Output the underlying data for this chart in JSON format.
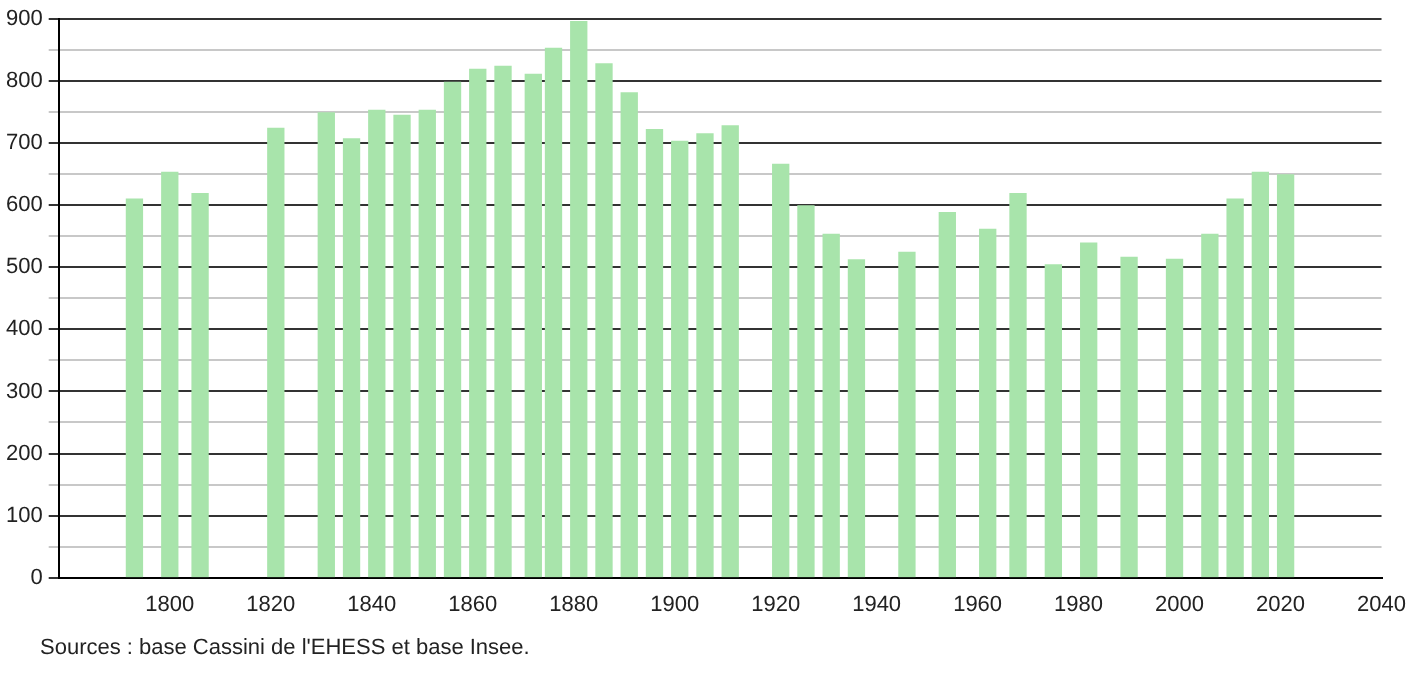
{
  "chart_data": {
    "type": "bar",
    "x": [
      1793,
      1800,
      1806,
      1821,
      1831,
      1836,
      1841,
      1846,
      1851,
      1856,
      1861,
      1866,
      1872,
      1876,
      1881,
      1886,
      1891,
      1896,
      1901,
      1906,
      1911,
      1921,
      1926,
      1931,
      1936,
      1946,
      1954,
      1962,
      1968,
      1975,
      1982,
      1990,
      1999,
      2006,
      2011,
      2016,
      2021
    ],
    "values": [
      610,
      653,
      619,
      724,
      749,
      707,
      753,
      745,
      753,
      798,
      819,
      824,
      811,
      853,
      896,
      828,
      781,
      722,
      703,
      715,
      728,
      666,
      599,
      553,
      512,
      524,
      588,
      561,
      619,
      504,
      539,
      516,
      513,
      553,
      610,
      653,
      649
    ],
    "color": "#a8e4ab",
    "xlim": [
      1778,
      2040
    ],
    "xticks": [
      1800,
      1820,
      1840,
      1860,
      1880,
      1900,
      1920,
      1940,
      1960,
      1980,
      2000,
      2020,
      2040
    ],
    "ylim": [
      0,
      900
    ],
    "yticks": [
      0,
      {
        "value": 50,
        "label": null
      },
      100,
      {
        "value": 150,
        "label": null
      },
      200,
      {
        "value": 250,
        "label": null
      },
      300,
      {
        "value": 350,
        "label": null
      },
      400,
      {
        "value": 450,
        "label": null
      },
      500,
      {
        "value": 550,
        "label": null
      },
      600,
      {
        "value": 650,
        "label": null
      },
      700,
      {
        "value": 750,
        "label": null
      },
      800,
      {
        "value": 850,
        "label": null
      },
      900
    ],
    "grid": "y",
    "annotations": [
      "Sources : base Cassini de l'EHESS et base Insee."
    ]
  }
}
